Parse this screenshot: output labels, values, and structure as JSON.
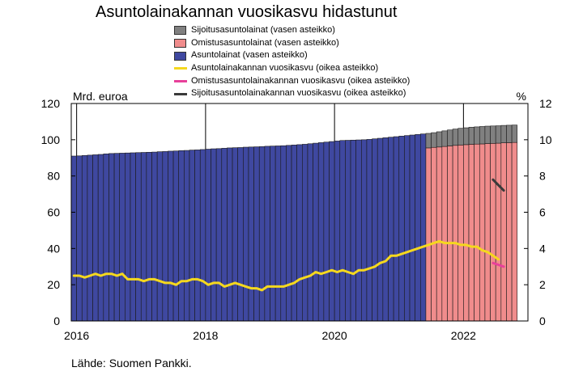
{
  "chart_data": {
    "title": "Asuntolainakannan vuosikasvu hidastunut",
    "type": "bar",
    "left_axis": {
      "title": "Mrd. euroa",
      "ticks": [
        0,
        20,
        40,
        60,
        80,
        100,
        120
      ],
      "ylim": [
        0,
        120
      ]
    },
    "right_axis": {
      "title": "%",
      "ticks": [
        0,
        2,
        4,
        6,
        8,
        10,
        12
      ],
      "ylim": [
        0,
        12
      ]
    },
    "x_ticks": [
      "2016",
      "2018",
      "2020",
      "2022"
    ],
    "x_range": [
      "2015-12",
      "2022-12"
    ],
    "grid": "vertical-at-year-ticks",
    "legend": "top",
    "legend_entries": [
      "Sijoitusasuntolainat (vasen asteikko)",
      "Omistusasuntolainat (vasen asteikko)",
      "Asuntolainat (vasen asteikko)",
      "Asuntolainakannan vuosikasvu (oikea asteikko)",
      "Omistusasuntolainakannan vuosikasvu (oikea asteikko)",
      "Sijoitusasuntolainakannan vuosikasvu (oikea asteikko)"
    ],
    "colors": {
      "sijoitus_bar": "#808080",
      "omistus_bar": "#f08c8c",
      "asunto_bar": "#3f48a0",
      "asunto_growth": "#f5d81e",
      "omistus_growth": "#e8409a",
      "sijoitus_growth": "#3a3a3a"
    },
    "bar_series": {
      "months_start": "2015-12",
      "asuntolainat": [
        91.0,
        91.1,
        91.3,
        91.5,
        91.7,
        91.9,
        92.2,
        92.4,
        92.5,
        92.6,
        92.7,
        92.8,
        92.9,
        93.0,
        93.1,
        93.2,
        93.4,
        93.5,
        93.7,
        93.8,
        94.0,
        94.1,
        94.3,
        94.4,
        94.6,
        94.8,
        95.0,
        95.1,
        95.3,
        95.5,
        95.6,
        95.7,
        95.9,
        96.0,
        96.1,
        96.2,
        96.4,
        96.5,
        96.6,
        96.7,
        96.9,
        97.1,
        97.3,
        97.5,
        97.8,
        98.1,
        98.4,
        98.7,
        99.0,
        99.3,
        99.6,
        99.7,
        99.8,
        99.9,
        100.0,
        100.2,
        100.5,
        100.8,
        101.1,
        101.4,
        101.7,
        102.0,
        102.3,
        102.6,
        102.9,
        103.2
      ],
      "omistus_months_start": "2021-06",
      "omistusasuntolainat": [
        95.5,
        95.8,
        96.0,
        96.3,
        96.6,
        96.9,
        97.1,
        97.3,
        97.5,
        97.6,
        97.7,
        97.9,
        98.0,
        98.1,
        98.3,
        98.4,
        98.5
      ],
      "sijoitusasuntolainat": [
        8.0,
        8.1,
        8.4,
        8.6,
        8.8,
        9.0,
        9.2,
        9.3,
        9.4,
        9.5,
        9.6,
        9.6,
        9.6,
        9.6,
        9.6,
        9.6,
        9.6
      ]
    },
    "line_series": [
      {
        "name": "Asuntolainakannan vuosikasvu (oikea asteikko)",
        "start": "2015-12",
        "values": [
          2.5,
          2.5,
          2.4,
          2.5,
          2.6,
          2.5,
          2.6,
          2.6,
          2.5,
          2.6,
          2.3,
          2.3,
          2.3,
          2.2,
          2.3,
          2.3,
          2.2,
          2.1,
          2.1,
          2.0,
          2.2,
          2.2,
          2.3,
          2.3,
          2.2,
          2.0,
          2.1,
          2.1,
          1.9,
          2.0,
          2.1,
          2.0,
          1.9,
          1.8,
          1.8,
          1.7,
          1.9,
          1.9,
          1.9,
          1.9,
          2.0,
          2.1,
          2.3,
          2.4,
          2.5,
          2.7,
          2.6,
          2.7,
          2.8,
          2.7,
          2.8,
          2.7,
          2.6,
          2.8,
          2.8,
          2.9,
          3.0,
          3.2,
          3.3,
          3.6,
          3.6,
          3.7,
          3.8,
          3.9,
          4.0,
          4.1,
          4.2,
          4.3,
          4.4,
          4.3,
          4.3,
          4.3,
          4.2,
          4.2,
          4.1,
          4.1,
          3.9,
          3.8,
          3.6,
          3.4
        ]
      },
      {
        "name": "Omistusasuntolainakannan vuosikasvu (oikea asteikko)",
        "start": "2022-06",
        "values": [
          3.2,
          3.1,
          3.0
        ]
      },
      {
        "name": "Sijoitusasuntolainakannan vuosikasvu (oikea asteikko)",
        "start": "2022-06",
        "values": [
          7.8,
          7.5,
          7.2
        ]
      }
    ]
  },
  "source": "Lähde: Suomen Pankki."
}
